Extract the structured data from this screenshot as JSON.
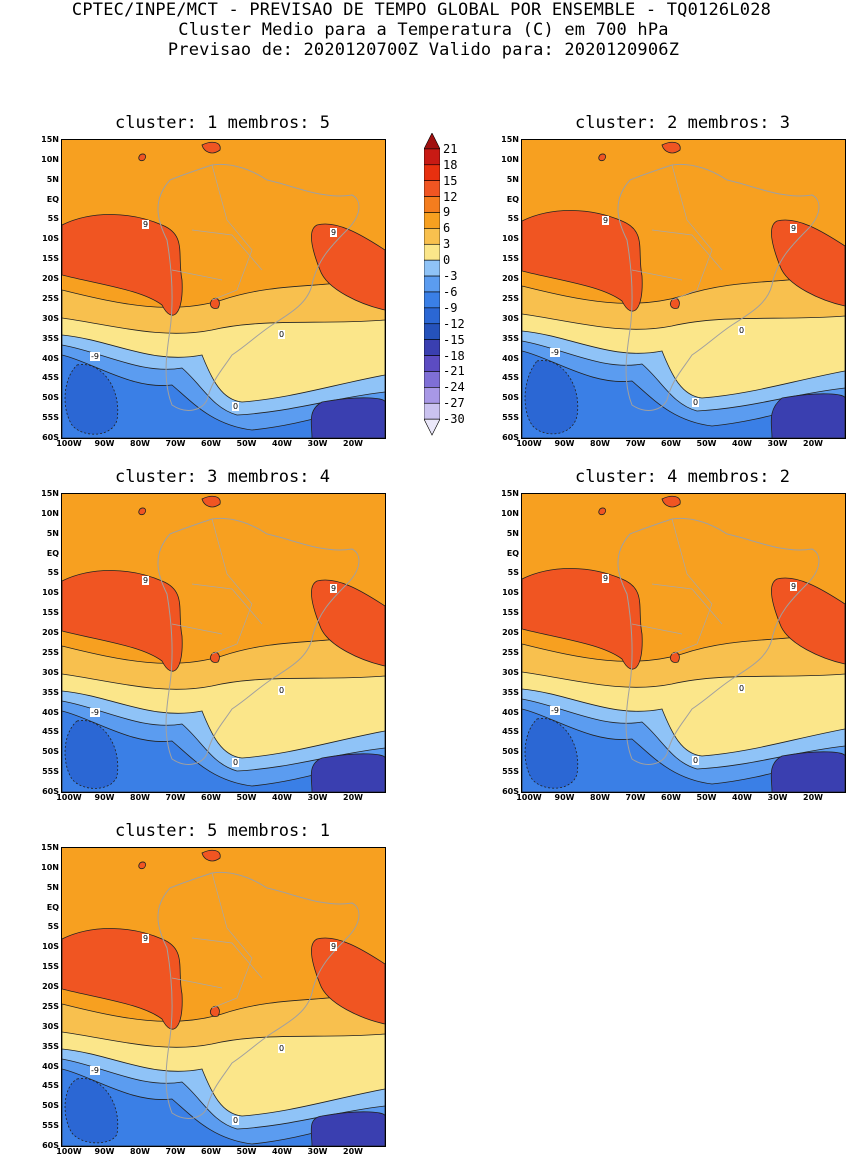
{
  "header": {
    "line1": "CPTEC/INPE/MCT - PREVISAO DE TEMPO GLOBAL POR ENSEMBLE - TQ0126L028",
    "line2": "Cluster Medio para a Temperatura (C) em 700 hPa",
    "line3": "Previsao de: 2020120700Z   Valido para: 2020120906Z"
  },
  "panels": [
    {
      "title": "cluster: 1  membros: 5"
    },
    {
      "title": "cluster: 2  membros: 3"
    },
    {
      "title": "cluster: 3  membros: 4"
    },
    {
      "title": "cluster: 4  membros: 2"
    },
    {
      "title": "cluster: 5  membros: 1"
    }
  ],
  "axes": {
    "lat_labels": [
      "15N",
      "10N",
      "5N",
      "EQ",
      "5S",
      "10S",
      "15S",
      "20S",
      "25S",
      "30S",
      "35S",
      "40S",
      "45S",
      "50S",
      "55S",
      "60S"
    ],
    "lon_labels": [
      "100W",
      "90W",
      "80W",
      "70W",
      "60W",
      "50W",
      "40W",
      "30W",
      "20W"
    ]
  },
  "contour_labels": [
    "9",
    "9",
    "0",
    "-9",
    "0"
  ],
  "colorbar": {
    "labels": [
      "21",
      "18",
      "15",
      "12",
      "9",
      "6",
      "3",
      "0",
      "-3",
      "-6",
      "-9",
      "-12",
      "-15",
      "-18",
      "-21",
      "-24",
      "-27",
      "-30"
    ],
    "colors": [
      "#a01010",
      "#c81a14",
      "#e8300f",
      "#f05522",
      "#f47d1e",
      "#f7a020",
      "#f8c04e",
      "#fbe68a",
      "#8fc3f7",
      "#5b9cf0",
      "#3a7fe6",
      "#2b67d4",
      "#2552bb",
      "#3a3fb0",
      "#5c4cc2",
      "#7f6fd6",
      "#a898e6",
      "#cbc3f0",
      "#ebe8fa"
    ]
  }
}
